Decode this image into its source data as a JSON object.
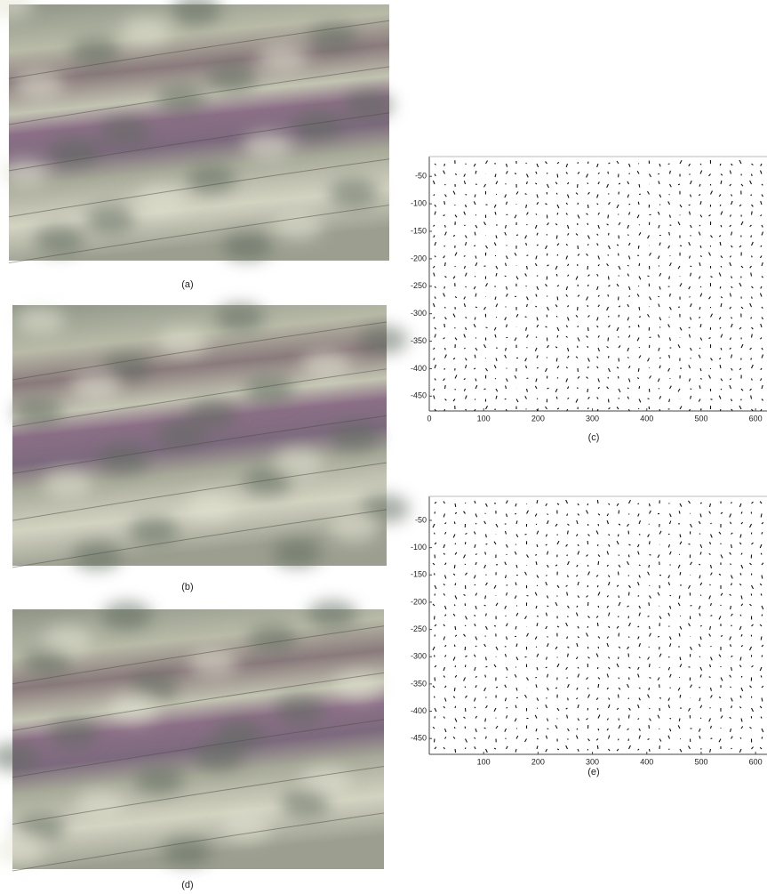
{
  "figure": {
    "panels": [
      {
        "label": "(a)"
      },
      {
        "label": "(b)"
      },
      {
        "label": "(d)"
      }
    ]
  },
  "chart_data": [
    {
      "type": "quiver",
      "label": "(c)",
      "xlim": [
        0,
        621
      ],
      "ylim": [
        -477,
        -14
      ],
      "xticks": [
        0,
        100,
        200,
        300,
        400,
        500,
        600
      ],
      "yticks": [
        -50,
        -100,
        -150,
        -200,
        -250,
        -300,
        -350,
        -400,
        -450
      ]
    },
    {
      "type": "quiver",
      "label": "(e)",
      "xlim": [
        0,
        621
      ],
      "ylim": [
        -479,
        -6
      ],
      "xticks": [
        100,
        200,
        300,
        400,
        500,
        600
      ],
      "yticks": [
        -50,
        -100,
        -150,
        -200,
        -250,
        -300,
        -350,
        -400,
        -450
      ]
    }
  ]
}
